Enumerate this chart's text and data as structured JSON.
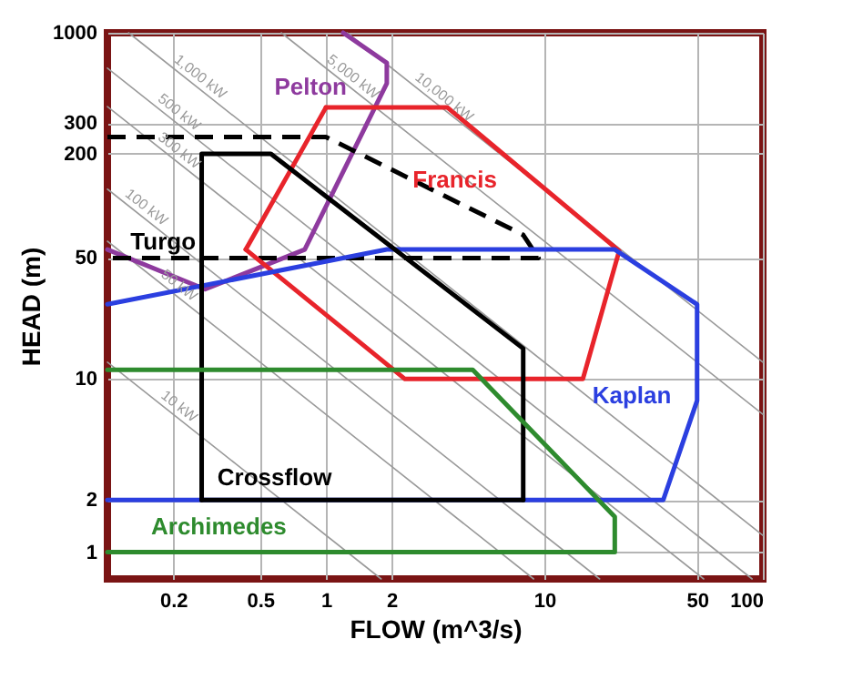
{
  "chart_data": {
    "type": "line",
    "xlabel": "FLOW (m^3/s)",
    "ylabel": "HEAD (m)",
    "log": "xy",
    "grid": true,
    "marker": "none",
    "xlim": [
      0.1,
      100
    ],
    "xticks": [
      0.2,
      0.5,
      1,
      2,
      10,
      50,
      100
    ],
    "ylim": [
      0.7,
      1000
    ],
    "yticks": [
      1,
      2,
      10,
      50,
      200,
      300,
      1000
    ],
    "series": [
      {
        "name": "Pelton",
        "color": "#8e3a9e",
        "x": [
          0.1,
          0.28,
          0.8,
          1.9,
          1.9,
          1.2
        ],
        "values": [
          56,
          33,
          56,
          510,
          670,
          1000
        ]
      },
      {
        "name": "Turgo",
        "color": "#000000",
        "line_style": "dashed",
        "x": [
          0.1,
          1,
          8,
          9.4,
          0.1
        ],
        "values": [
          250,
          250,
          68,
          50,
          50
        ]
      },
      {
        "name": "Francis",
        "color": "#e8242b",
        "x": [
          1,
          3.6,
          22,
          15,
          2.3,
          0.43
        ],
        "values": [
          370,
          370,
          55,
          10,
          10,
          56
        ]
      },
      {
        "color": "#e8242b",
        "x": [
          0.43,
          1
        ],
        "values": [
          56,
          370
        ]
      },
      {
        "name": "Kaplan",
        "color": "#2b3fe0",
        "x": [
          0.1,
          1.9,
          21,
          50,
          50,
          35,
          0.1
        ],
        "values": [
          27,
          56,
          56,
          27,
          7.5,
          2,
          2
        ]
      },
      {
        "name": "Crossflow",
        "color": "#000000",
        "x": [
          0.27,
          0.27,
          0.56,
          8,
          8
        ],
        "values": [
          2,
          200,
          200,
          15,
          2
        ]
      },
      {
        "color": "#000000",
        "x": [
          8,
          0.27
        ],
        "values": [
          2,
          2
        ]
      },
      {
        "name": "Archimedes",
        "color": "#2e8b2e",
        "x": [
          0.1,
          4.7,
          21,
          21,
          0.1
        ],
        "values": [
          11.3,
          11.3,
          1.6,
          1,
          1
        ]
      },
      {
        "name": "10 kW",
        "color": "#9a9a9a",
        "x": [
          0.1,
          1.79
        ],
        "values": [
          12.5,
          0.7
        ]
      },
      {
        "name": "50 kW",
        "color": "#9a9a9a",
        "x": [
          0.1,
          8.93
        ],
        "values": [
          62.5,
          0.7
        ]
      },
      {
        "name": "100 kW",
        "color": "#9a9a9a",
        "x": [
          0.1,
          17.9
        ],
        "values": [
          125,
          0.7
        ]
      },
      {
        "name": "300 kW",
        "color": "#9a9a9a",
        "x": [
          0.1,
          53.6
        ],
        "values": [
          375,
          0.7
        ]
      },
      {
        "name": "500 kW",
        "color": "#9a9a9a",
        "x": [
          0.1,
          89.3
        ],
        "values": [
          625,
          0.7
        ]
      },
      {
        "name": "1,000 kW",
        "color": "#9a9a9a",
        "x": [
          0.125,
          100
        ],
        "values": [
          1000,
          1.25
        ]
      },
      {
        "name": "5,000 kW",
        "color": "#9a9a9a",
        "x": [
          0.625,
          100
        ],
        "values": [
          1000,
          6.25
        ]
      },
      {
        "name": "10,000 kW",
        "color": "#9a9a9a",
        "x": [
          1.25,
          100
        ],
        "values": [
          1000,
          12.5
        ]
      }
    ]
  }
}
